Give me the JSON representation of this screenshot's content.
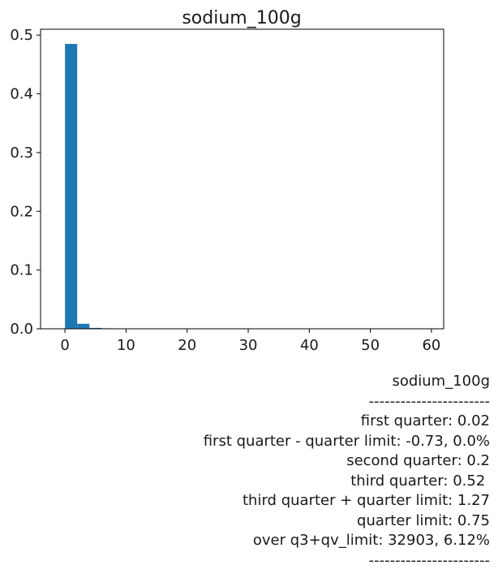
{
  "chart_data": {
    "type": "bar",
    "title": "sodium_100g",
    "xlabel": "",
    "ylabel": "",
    "bar_color": "#1f77b4",
    "xlim": [
      -4,
      62
    ],
    "ylim": [
      0,
      0.51
    ],
    "xticks": [
      0,
      10,
      20,
      30,
      40,
      50,
      60
    ],
    "xtick_labels": [
      "0",
      "10",
      "20",
      "30",
      "40",
      "50",
      "60"
    ],
    "yticks": [
      0.0,
      0.1,
      0.2,
      0.3,
      0.4,
      0.5
    ],
    "ytick_labels": [
      "0.0",
      "0.1",
      "0.2",
      "0.3",
      "0.4",
      "0.5"
    ],
    "grid": false,
    "bins": [
      {
        "x0": 0,
        "x1": 2,
        "value": 0.485
      },
      {
        "x0": 2,
        "x1": 4,
        "value": 0.0085
      },
      {
        "x0": 4,
        "x1": 6,
        "value": 0.0015
      },
      {
        "x0": 6,
        "x1": 8,
        "value": 0.0008
      },
      {
        "x0": 8,
        "x1": 10,
        "value": 0.0003
      },
      {
        "x0": 10,
        "x1": 12,
        "value": 0.0002
      },
      {
        "x0": 12,
        "x1": 14,
        "value": 0.0001
      }
    ]
  },
  "stats": {
    "lines": [
      "sodium_100g",
      "-----------------------",
      "first quarter: 0.02",
      "first quarter - quarter limit: -0.73, 0.0%",
      "second quarter: 0.2",
      "third quarter: 0.52 ",
      "third quarter + quarter limit: 1.27",
      "quarter limit: 0.75",
      "over q3+qv_limit: 32903, 6.12%",
      "-----------------------"
    ]
  }
}
